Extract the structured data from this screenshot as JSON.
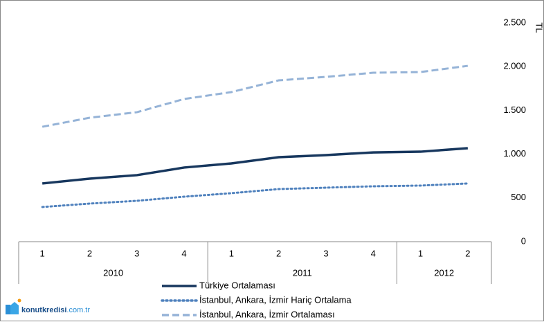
{
  "chart_data": {
    "type": "line",
    "y_axis_label": "TL",
    "groups": [
      {
        "label": "2010",
        "categories": [
          "1",
          "2",
          "3",
          "4"
        ]
      },
      {
        "label": "2011",
        "categories": [
          "1",
          "2",
          "3",
          "4"
        ]
      },
      {
        "label": "2012",
        "categories": [
          "1",
          "2"
        ]
      }
    ],
    "ylim": [
      0,
      2500
    ],
    "yticks": [
      0,
      {
        "value": 500,
        "label": "500"
      },
      {
        "value": 1000,
        "label": "1.000"
      },
      {
        "value": 1500,
        "label": "1.500"
      },
      {
        "value": 2000,
        "label": "2.000"
      },
      {
        "value": 2500,
        "label": "2.500"
      }
    ],
    "y_axis_side": "right",
    "grid": false,
    "legend": "bottom",
    "series": [
      {
        "name": "Türkiye Ortalaması",
        "color": "#17375e",
        "line_style": "solid",
        "values": [
          665,
          720,
          760,
          847,
          894,
          965,
          989,
          1020,
          1028,
          1068
        ]
      },
      {
        "name": "İstanbul, Ankara, İzmir Hariç Ortalama",
        "color": "#4f81bd",
        "line_style": "dotted",
        "values": [
          396,
          435,
          467,
          514,
          554,
          601,
          617,
          633,
          641,
          665
        ]
      },
      {
        "name": "İstanbul, Ankara, İzmir Ortalaması",
        "color": "#95b3d7",
        "line_style": "dashed",
        "values": [
          1313,
          1416,
          1479,
          1630,
          1709,
          1843,
          1883,
          1930,
          1938,
          2009
        ]
      }
    ],
    "watermark": {
      "brand": "konutkredisi",
      "domain": ".com.tr"
    }
  }
}
